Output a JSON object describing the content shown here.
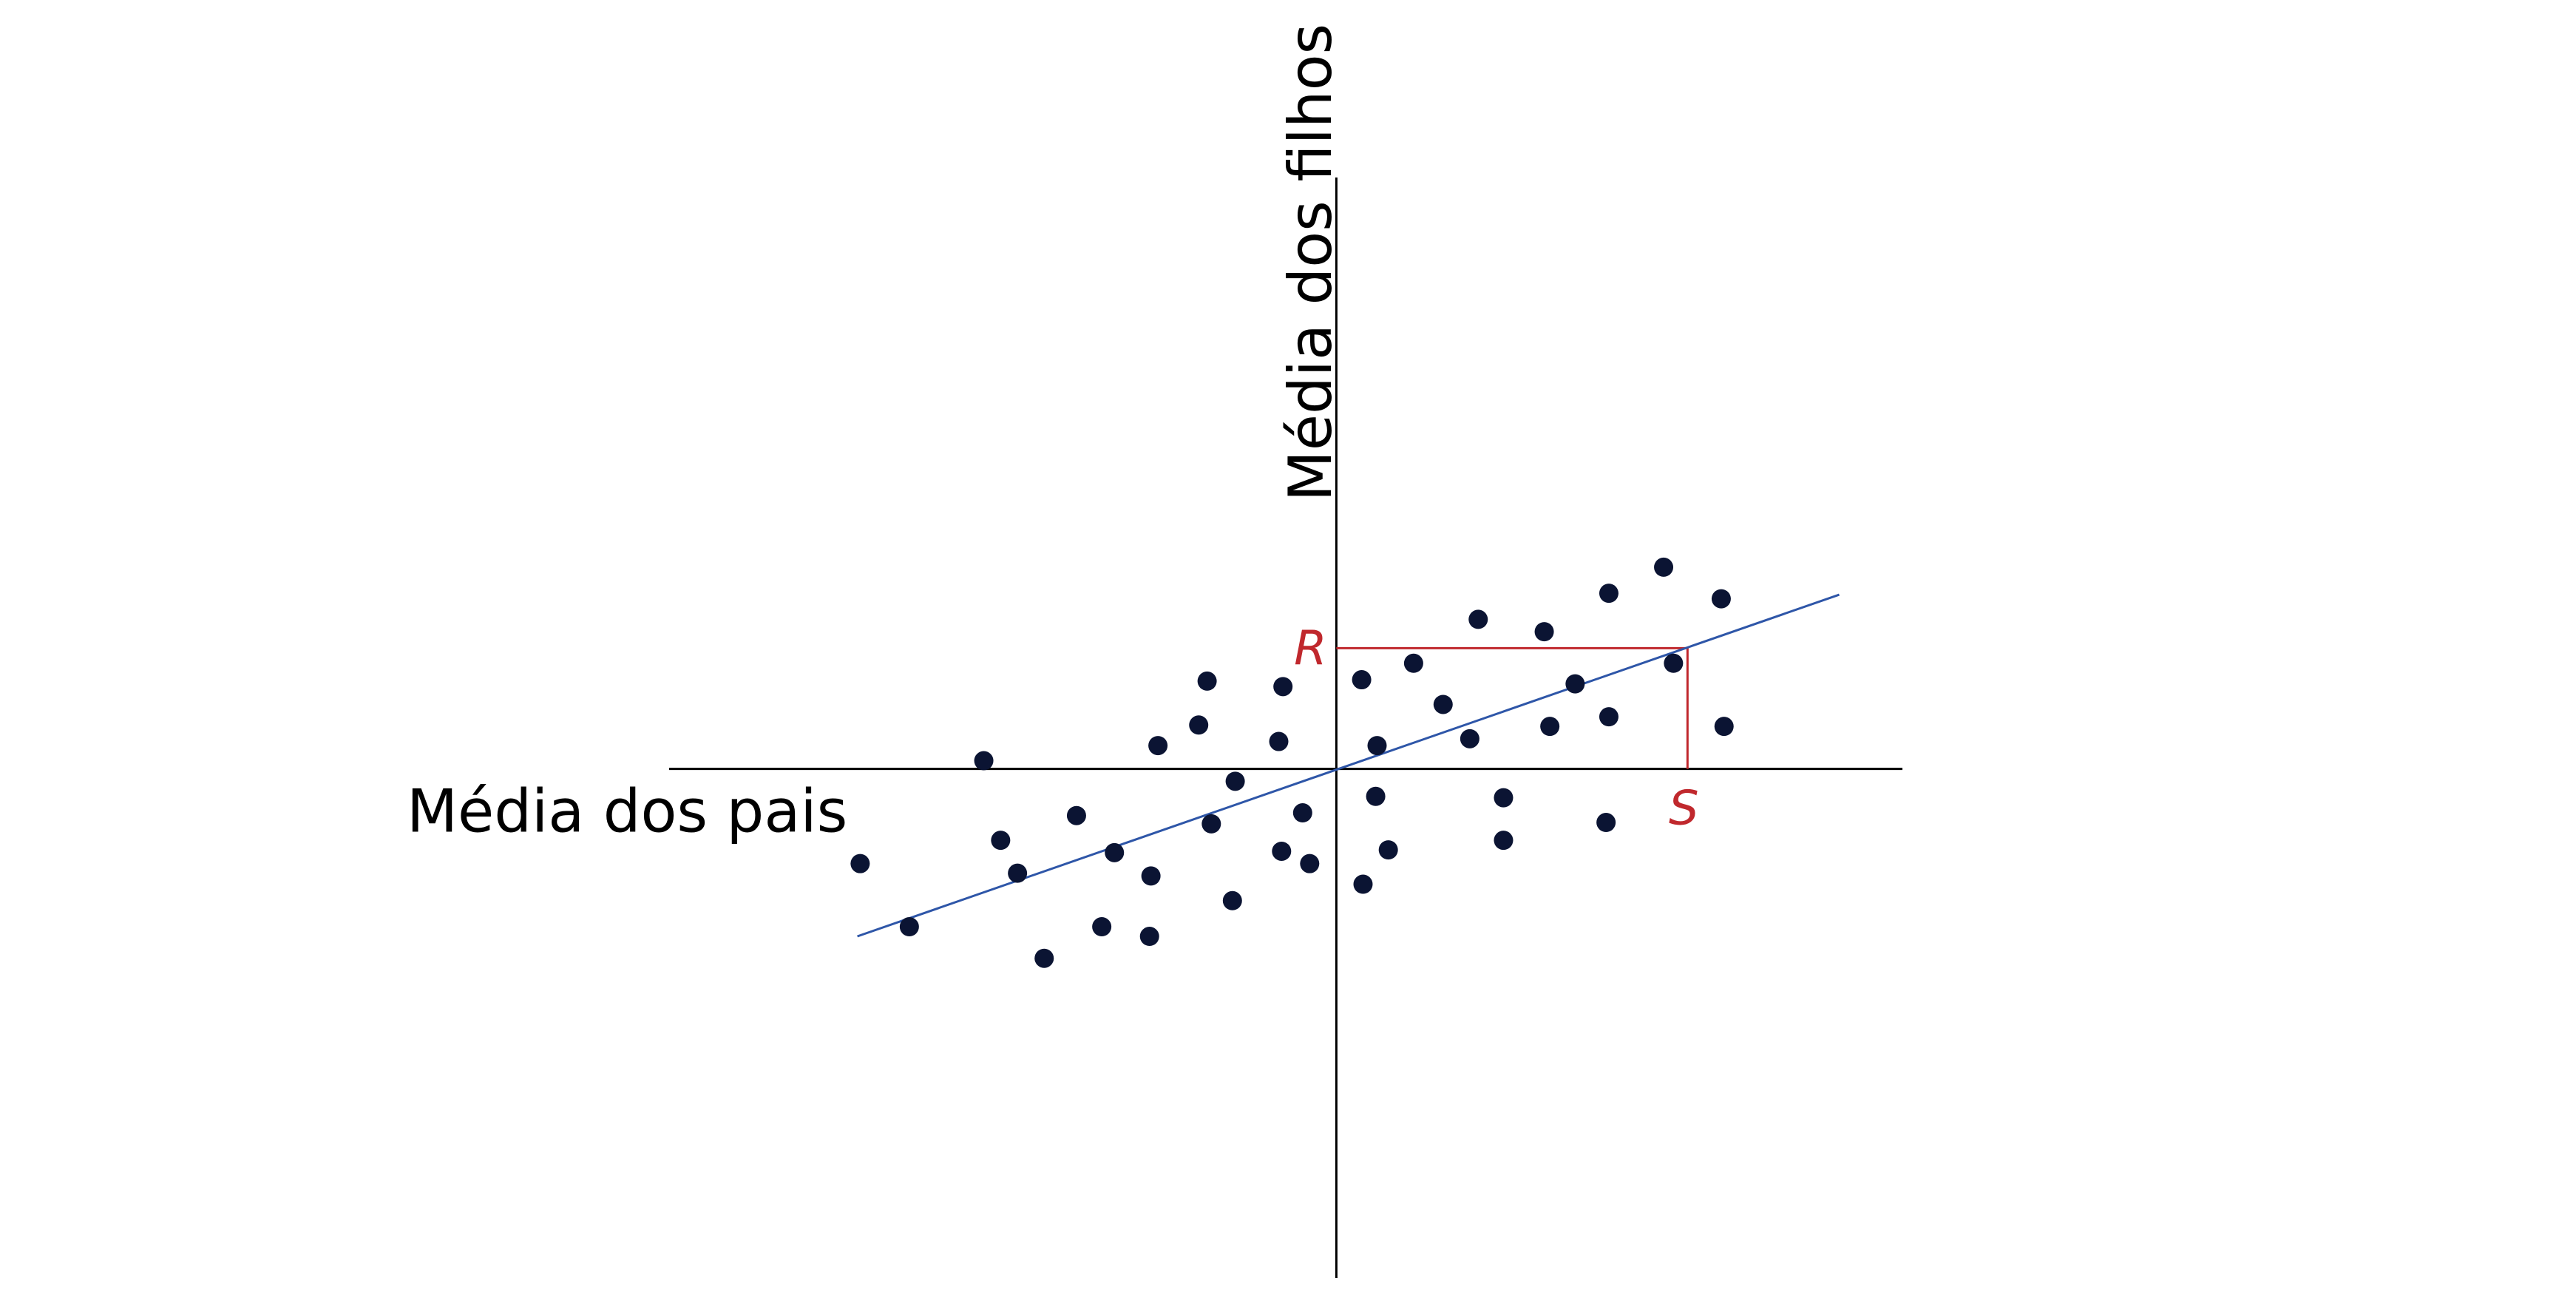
{
  "colors": {
    "background": "#ffffff",
    "axis": "#000000",
    "point": "#0b1433",
    "regression": "#2e56a8",
    "annotation": "#c0282d"
  },
  "chart_data": {
    "type": "scatter",
    "xlabel": "Média dos pais",
    "ylabel": "Média dos filhos",
    "xlim": [
      -4.75,
      4.03
    ],
    "ylim": [
      -3.71,
      4.31
    ],
    "grid": false,
    "axes_cross_at_origin": true,
    "points": [
      {
        "x": -3.39,
        "y": -0.69
      },
      {
        "x": -3.04,
        "y": -1.15
      },
      {
        "x": -2.39,
        "y": -0.52
      },
      {
        "x": -2.51,
        "y": 0.06
      },
      {
        "x": -2.27,
        "y": -0.76
      },
      {
        "x": -2.08,
        "y": -1.38
      },
      {
        "x": -1.85,
        "y": -0.34
      },
      {
        "x": -1.58,
        "y": -0.61
      },
      {
        "x": -1.67,
        "y": -1.15
      },
      {
        "x": -1.32,
        "y": -0.78
      },
      {
        "x": -1.33,
        "y": -1.22
      },
      {
        "x": -1.27,
        "y": 0.17
      },
      {
        "x": -0.98,
        "y": 0.32
      },
      {
        "x": -0.92,
        "y": 0.64
      },
      {
        "x": -0.89,
        "y": -0.4
      },
      {
        "x": -0.72,
        "y": -0.09
      },
      {
        "x": -0.74,
        "y": -0.96
      },
      {
        "x": -0.38,
        "y": 0.6
      },
      {
        "x": -0.41,
        "y": 0.2
      },
      {
        "x": -0.39,
        "y": -0.6
      },
      {
        "x": -0.24,
        "y": -0.32
      },
      {
        "x": -0.19,
        "y": -0.69
      },
      {
        "x": 0.18,
        "y": 0.65
      },
      {
        "x": 0.29,
        "y": 0.17
      },
      {
        "x": 0.28,
        "y": -0.2
      },
      {
        "x": 0.19,
        "y": -0.84
      },
      {
        "x": 0.37,
        "y": -0.59
      },
      {
        "x": 0.55,
        "y": 0.77
      },
      {
        "x": 0.76,
        "y": 0.47
      },
      {
        "x": 1.01,
        "y": 1.09
      },
      {
        "x": 0.95,
        "y": 0.22
      },
      {
        "x": 1.19,
        "y": -0.21
      },
      {
        "x": 1.19,
        "y": -0.52
      },
      {
        "x": 1.48,
        "y": 1.0
      },
      {
        "x": 1.52,
        "y": 0.31
      },
      {
        "x": 1.7,
        "y": 0.62
      },
      {
        "x": 1.94,
        "y": 1.28
      },
      {
        "x": 1.94,
        "y": 0.38
      },
      {
        "x": 1.92,
        "y": -0.39
      },
      {
        "x": 2.33,
        "y": 1.47
      },
      {
        "x": 2.4,
        "y": 0.77
      },
      {
        "x": 2.74,
        "y": 1.24
      },
      {
        "x": 2.76,
        "y": 0.31
      }
    ],
    "regression_line": {
      "x": [
        -3.41,
        3.58
      ],
      "y": [
        -1.22,
        1.27
      ]
    },
    "annotation": {
      "point": {
        "x": 2.5,
        "y": 0.88
      },
      "x_label": "S",
      "y_label": "R"
    }
  }
}
